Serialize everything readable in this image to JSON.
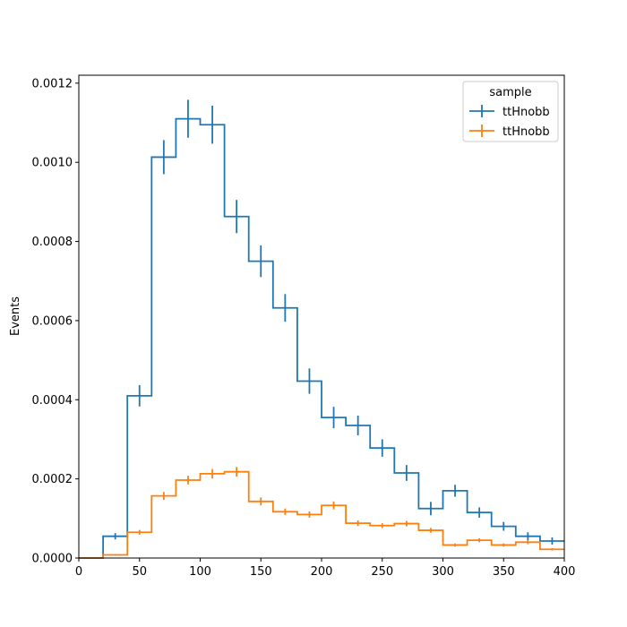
{
  "chart_data": {
    "type": "line",
    "title": "",
    "xlabel": "",
    "ylabel": "Events",
    "xlim": [
      0,
      400
    ],
    "ylim": [
      0,
      0.00122
    ],
    "x_ticks": [
      0,
      50,
      100,
      150,
      200,
      250,
      300,
      350,
      400
    ],
    "y_ticks": [
      0,
      0.0002,
      0.0004,
      0.0006,
      0.0008,
      0.001,
      0.0012
    ],
    "y_tick_labels": [
      "0.0000",
      "0.0002",
      "0.0004",
      "0.0006",
      "0.0008",
      "0.0010",
      "0.0012"
    ],
    "bin_edges": [
      0,
      20,
      40,
      60,
      80,
      100,
      120,
      140,
      160,
      180,
      200,
      220,
      240,
      260,
      280,
      300,
      320,
      340,
      360,
      380,
      400
    ],
    "grid": false,
    "legend": {
      "title": "sample",
      "placement": "top-right"
    },
    "series": [
      {
        "name": "ttHnobb",
        "color": "#1f77b4",
        "values": [
          0.0,
          5.5e-05,
          0.00041,
          0.001013,
          0.00111,
          0.001095,
          0.000863,
          0.00075,
          0.000632,
          0.000447,
          0.000355,
          0.000335,
          0.000278,
          0.000215,
          0.000125,
          0.00017,
          0.000115,
          8e-05,
          5.5e-05,
          4.3e-05
        ],
        "errors": [
          0.0,
          8e-06,
          2.7e-05,
          4.3e-05,
          4.8e-05,
          4.8e-05,
          4.2e-05,
          4e-05,
          3.5e-05,
          3.2e-05,
          2.7e-05,
          2.5e-05,
          2.2e-05,
          2e-05,
          1.7e-05,
          1.5e-05,
          1.3e-05,
          1.1e-05,
          1e-05,
          9e-06
        ]
      },
      {
        "name": "ttHnobb",
        "color": "#ff7f0e",
        "values": [
          0.0,
          8e-06,
          6.5e-05,
          0.000157,
          0.000197,
          0.000213,
          0.000218,
          0.000143,
          0.000117,
          0.00011,
          0.000133,
          8.8e-05,
          8.2e-05,
          8.7e-05,
          7e-05,
          3.3e-05,
          4.5e-05,
          3.3e-05,
          4e-05,
          2.2e-05
        ],
        "errors": [
          0.0,
          2e-06,
          6e-06,
          1e-05,
          1.1e-05,
          1.2e-05,
          1.2e-05,
          1e-05,
          8e-06,
          8e-06,
          1e-05,
          7e-06,
          6e-06,
          7e-06,
          6e-06,
          4e-06,
          5e-06,
          4e-06,
          5e-06,
          3e-06
        ]
      }
    ]
  }
}
